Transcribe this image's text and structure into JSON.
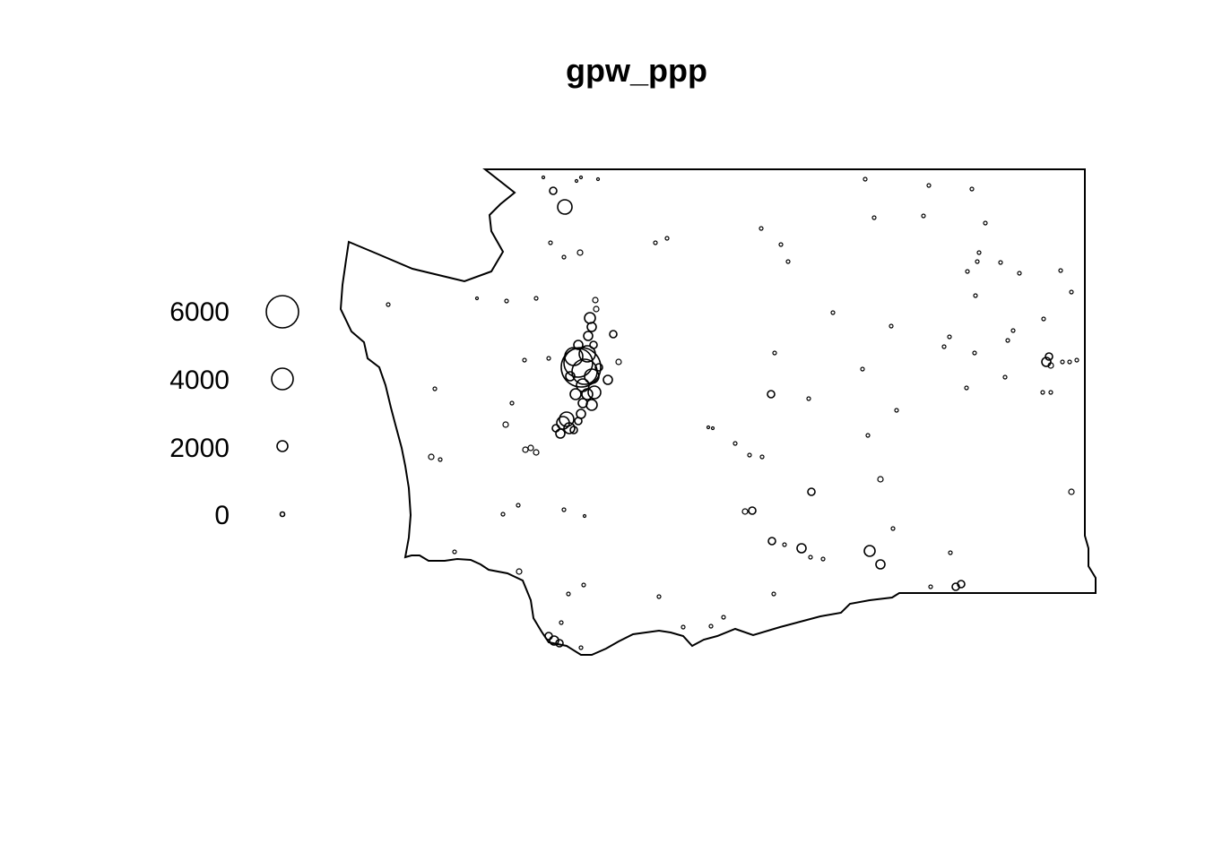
{
  "title": "gpw_ppp",
  "legend": {
    "entries": [
      {
        "label": "6000",
        "value": 6000
      },
      {
        "label": "4000",
        "value": 4000
      },
      {
        "label": "2000",
        "value": 2000
      },
      {
        "label": "0",
        "value": 0
      }
    ]
  },
  "colors": {
    "stroke": "#000000",
    "background": "#ffffff"
  },
  "map_features": [
    "state-boundary",
    "point-markers"
  ]
}
